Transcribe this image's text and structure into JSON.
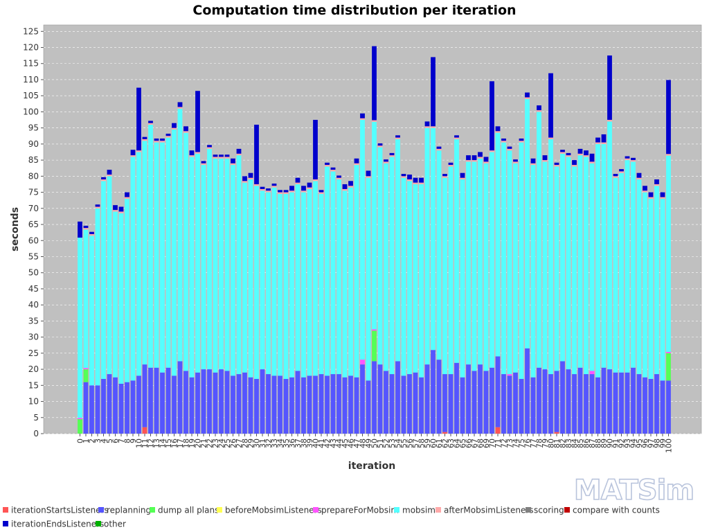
{
  "logo": {
    "text": "MATSim"
  },
  "chart_data": {
    "type": "bar",
    "stacked": true,
    "title": "Computation time distribution per iteration",
    "xlabel": "iteration",
    "ylabel": "seconds",
    "ylim": [
      0,
      127
    ],
    "yticks": [
      0,
      5,
      10,
      15,
      20,
      25,
      30,
      35,
      40,
      45,
      50,
      55,
      60,
      65,
      70,
      75,
      80,
      85,
      90,
      95,
      100,
      105,
      110,
      115,
      120,
      125
    ],
    "grid": true,
    "legend_position": "bottom",
    "background": "#c0c0c0",
    "categories": [
      "0",
      "1",
      "2",
      "3",
      "4",
      "5",
      "6",
      "7",
      "8",
      "9",
      "10",
      "11",
      "12",
      "13",
      "14",
      "15",
      "16",
      "17",
      "18",
      "19",
      "20",
      "21",
      "22",
      "23",
      "24",
      "25",
      "26",
      "27",
      "28",
      "29",
      "30",
      "31",
      "32",
      "33",
      "34",
      "35",
      "36",
      "37",
      "38",
      "39",
      "40",
      "41",
      "42",
      "43",
      "44",
      "45",
      "46",
      "47",
      "48",
      "49",
      "50",
      "51",
      "52",
      "53",
      "54",
      "55",
      "56",
      "57",
      "58",
      "59",
      "60",
      "61",
      "62",
      "63",
      "64",
      "65",
      "66",
      "67",
      "68",
      "69",
      "70",
      "71",
      "72",
      "73",
      "74",
      "75",
      "76",
      "77",
      "78",
      "79",
      "80",
      "81",
      "82",
      "83",
      "84",
      "85",
      "86",
      "87",
      "88",
      "89",
      "90",
      "91",
      "92",
      "93",
      "94",
      "95",
      "96",
      "97",
      "98",
      "99",
      "100"
    ],
    "series": [
      {
        "name": "iterationStartsListeners",
        "color": "#ff5555",
        "values": [
          0,
          0,
          0,
          0,
          0,
          0,
          0,
          0,
          0,
          0,
          0,
          2,
          0,
          0,
          0,
          0,
          0,
          0,
          0,
          0,
          0,
          0,
          0,
          0,
          0,
          0,
          0,
          0,
          0,
          0,
          0,
          0,
          0,
          0,
          0,
          0,
          0,
          0,
          0,
          0,
          0,
          0,
          0,
          0,
          0,
          0,
          0,
          0,
          0,
          0,
          0,
          0,
          0,
          0,
          0,
          0,
          0,
          0,
          0,
          0,
          0,
          0,
          0.5,
          0,
          0,
          0,
          0,
          0,
          0,
          0,
          0,
          2,
          0,
          0,
          0,
          0,
          0,
          0,
          0,
          0,
          0,
          0.5,
          0,
          0,
          0,
          0,
          0,
          0,
          0,
          0,
          0,
          0,
          0,
          0,
          0,
          0,
          0,
          0,
          0,
          0,
          0
        ]
      },
      {
        "name": "replanning",
        "color": "#5555ff",
        "values": [
          0,
          16,
          15,
          15,
          17,
          18.5,
          17.5,
          15.5,
          16,
          16.5,
          18,
          19.5,
          20.5,
          20.5,
          19,
          20.5,
          18,
          22.5,
          19.5,
          17.5,
          19,
          20,
          20,
          19,
          20,
          19.5,
          18,
          18.5,
          19,
          17.5,
          17,
          20,
          18.5,
          18,
          18,
          17,
          17.5,
          19.5,
          17.5,
          18,
          18,
          18.5,
          18,
          18.5,
          18.5,
          17.5,
          18,
          17.5,
          21.5,
          16.5,
          22.5,
          21.5,
          19.5,
          18.5,
          22.5,
          18,
          18.5,
          19,
          17.5,
          21.5,
          26,
          23,
          18,
          18.5,
          22,
          17.5,
          21.5,
          19.5,
          21.5,
          19.5,
          20.5,
          22,
          18.5,
          18,
          19,
          17,
          26.5,
          17.5,
          20.5,
          20,
          18.5,
          19,
          22.5,
          20,
          18.5,
          20.5,
          18.5,
          18.5,
          17.5,
          20.5,
          20,
          19,
          19,
          19,
          20.5,
          18.5,
          17.5,
          17,
          18.5,
          16.5,
          16.5
        ]
      },
      {
        "name": "dump all plans",
        "color": "#55ff55",
        "values": [
          4.5,
          4,
          0,
          0,
          0,
          0,
          0,
          0,
          0,
          0,
          0,
          0,
          0,
          0,
          0,
          0,
          0,
          0,
          0,
          0,
          0,
          0,
          0,
          0,
          0,
          0,
          0,
          0,
          0,
          0,
          0,
          0,
          0,
          0,
          0,
          0,
          0,
          0,
          0,
          0,
          0,
          0,
          0,
          0,
          0,
          0,
          0,
          0,
          0,
          0,
          9.5,
          0,
          0,
          0,
          0,
          0,
          0,
          0,
          0,
          0,
          0,
          0,
          0,
          0,
          0,
          0,
          0,
          0,
          0,
          0,
          0,
          0,
          0,
          0,
          0,
          0,
          0,
          0,
          0,
          0,
          0,
          0,
          0,
          0,
          0,
          0,
          0,
          0,
          0,
          0,
          0,
          0,
          0,
          0,
          0,
          0,
          0,
          0,
          0,
          0,
          8.5
        ]
      },
      {
        "name": "beforeMobsimListeners",
        "color": "#ffff55",
        "values": [
          0,
          0,
          0,
          0,
          0,
          0,
          0,
          0,
          0,
          0,
          0,
          0,
          0,
          0,
          0,
          0,
          0,
          0,
          0,
          0,
          0,
          0,
          0,
          0,
          0,
          0,
          0,
          0,
          0,
          0,
          0,
          0,
          0,
          0,
          0,
          0,
          0,
          0,
          0,
          0,
          0,
          0,
          0,
          0,
          0,
          0,
          0,
          0,
          0,
          0,
          0,
          0,
          0,
          0,
          0,
          0,
          0,
          0,
          0,
          0,
          0,
          0,
          0,
          0,
          0,
          0,
          0,
          0,
          0,
          0,
          0,
          0,
          0,
          0,
          0,
          0,
          0,
          0,
          0,
          0,
          0,
          0,
          0,
          0,
          0,
          0,
          0,
          0,
          0,
          0,
          0,
          0,
          0,
          0,
          0,
          0,
          0,
          0,
          0,
          0,
          0
        ]
      },
      {
        "name": "prepareForMobsim",
        "color": "#ff55ff",
        "values": [
          0.4,
          0.4,
          0,
          0,
          0,
          0,
          0,
          0,
          0,
          0,
          0,
          0,
          0,
          0,
          0,
          0,
          0,
          0,
          0,
          0,
          0,
          0,
          0,
          0,
          0,
          0,
          0,
          0,
          0,
          0,
          0,
          0,
          0,
          0,
          0,
          0,
          0,
          0,
          0,
          0,
          0,
          0,
          0,
          0,
          0,
          0,
          0,
          0,
          1.5,
          0,
          0.4,
          0,
          0,
          0,
          0,
          0,
          0,
          0,
          0,
          0,
          0,
          0,
          0,
          0,
          0,
          0,
          0,
          0,
          0,
          0,
          0,
          0,
          0,
          0.5,
          0,
          0,
          0,
          0,
          0,
          0,
          0,
          0,
          0,
          0,
          0,
          0,
          0,
          1,
          0,
          0,
          0,
          0,
          0,
          0,
          0,
          0,
          0,
          0,
          0,
          0,
          0.4
        ]
      },
      {
        "name": "mobsim",
        "color": "#55ffff",
        "values": [
          56,
          43,
          46.5,
          55,
          61.5,
          61.5,
          51.5,
          53,
          57,
          69.5,
          69.5,
          69.5,
          75.5,
          70,
          71.5,
          71.5,
          76.5,
          78.5,
          74,
          68.5,
          68,
          63.5,
          68.5,
          66.5,
          65.5,
          66,
          65.5,
          68,
          59,
          61.5,
          60,
          55.5,
          56.5,
          58.5,
          56.5,
          57.5,
          57.5,
          58,
          57.5,
          58,
          60.5,
          56,
          65,
          63,
          60.5,
          58,
          58.5,
          66,
          74.5,
          63,
          64.5,
          67.5,
          64.5,
          67.5,
          69,
          61.5,
          60,
          58.5,
          60,
          73.5,
          69,
          65,
          61,
          64.5,
          69.5,
          61.5,
          63,
          65,
          64,
          64.5,
          67,
          69.5,
          72,
          69.5,
          65,
          73.5,
          77.5,
          66,
          79.5,
          64.5,
          73,
          63.5,
          64.5,
          66,
          64.5,
          66,
          67.5,
          64.5,
          72.5,
          69.5,
          77,
          60.5,
          62,
          66,
          64,
          60.5,
          57.5,
          56,
          58.5,
          56.5,
          61
        ]
      },
      {
        "name": "afterMobsimListeners",
        "color": "#ffaaaa",
        "values": [
          0,
          0.5,
          0.5,
          0.5,
          0.5,
          0.5,
          0.5,
          0.5,
          0.5,
          0.5,
          0.5,
          0.5,
          0.5,
          0.5,
          0.5,
          0.5,
          0.5,
          0.5,
          0.5,
          0.5,
          0.5,
          0.5,
          0.5,
          0.5,
          0.5,
          0.5,
          0.5,
          0.5,
          0.5,
          0.5,
          0.5,
          0.5,
          0.5,
          0.5,
          0.5,
          0.5,
          0.5,
          0.5,
          0.5,
          0.5,
          0.5,
          0.5,
          0.5,
          0.5,
          0.5,
          0.5,
          0.5,
          0.5,
          0.5,
          0.5,
          0.5,
          0.5,
          0.5,
          0.5,
          0.5,
          0.5,
          0.5,
          0.5,
          0.5,
          0.5,
          0.5,
          0.5,
          0.5,
          0.5,
          0.5,
          0.5,
          0.5,
          0.5,
          0.5,
          0.5,
          0.5,
          0.5,
          0.5,
          0.5,
          0.5,
          0.5,
          0.5,
          0.5,
          0.5,
          0.5,
          0.5,
          0.5,
          0.5,
          0.5,
          0.5,
          0.5,
          0.5,
          0.5,
          0.5,
          0.5,
          0.5,
          0.5,
          0.5,
          0.5,
          0.5,
          0.5,
          0.5,
          0.5,
          0.5,
          0.5,
          0.5
        ]
      },
      {
        "name": "scoring",
        "color": "#808080",
        "values": [
          0,
          0,
          0,
          0,
          0,
          0,
          0,
          0,
          0,
          0,
          0,
          0,
          0,
          0,
          0,
          0,
          0,
          0,
          0,
          0,
          0,
          0,
          0,
          0,
          0,
          0,
          0,
          0,
          0,
          0,
          0,
          0,
          0,
          0,
          0,
          0,
          0,
          0,
          0,
          0,
          0,
          0,
          0,
          0,
          0,
          0,
          0,
          0,
          0,
          0,
          0,
          0,
          0,
          0,
          0,
          0,
          0,
          0,
          0,
          0,
          0,
          0,
          0,
          0,
          0,
          0,
          0,
          0,
          0,
          0,
          0,
          0,
          0,
          0,
          0,
          0,
          0,
          0,
          0,
          0,
          0,
          0,
          0,
          0,
          0,
          0,
          0,
          0,
          0,
          0,
          0,
          0,
          0,
          0,
          0,
          0,
          0,
          0,
          0,
          0,
          0
        ]
      },
      {
        "name": "compare with counts",
        "color": "#c00000",
        "values": [
          0,
          0,
          0,
          0,
          0,
          0,
          0,
          0,
          0,
          0,
          0,
          0,
          0,
          0,
          0,
          0,
          0,
          0,
          0,
          0,
          0,
          0,
          0,
          0,
          0,
          0,
          0,
          0,
          0,
          0,
          0,
          0,
          0,
          0,
          0,
          0,
          0,
          0,
          0,
          0,
          0,
          0,
          0,
          0,
          0,
          0,
          0,
          0,
          0,
          0,
          0,
          0,
          0,
          0,
          0,
          0,
          0,
          0,
          0,
          0,
          0,
          0,
          0,
          0,
          0,
          0,
          0,
          0,
          0,
          0,
          0,
          0,
          0,
          0,
          0,
          0,
          0,
          0,
          0,
          0,
          0,
          0,
          0,
          0,
          0,
          0,
          0,
          0,
          0,
          0,
          0,
          0,
          0,
          0,
          0,
          0,
          0,
          0,
          0,
          0,
          0
        ]
      },
      {
        "name": "iterationEndsListeners",
        "color": "#0000cc",
        "values": [
          5,
          0.7,
          0.7,
          0.7,
          0.7,
          1.5,
          1.5,
          1.5,
          1.5,
          1.7,
          19.5,
          0.7,
          0.7,
          0.7,
          0.7,
          0.7,
          1.5,
          1.5,
          1.5,
          1.5,
          19,
          0.7,
          0.7,
          0.7,
          0.7,
          0.7,
          1.5,
          1.5,
          1.5,
          1.5,
          18.5,
          0.7,
          0.7,
          0.7,
          0.7,
          0.7,
          1.5,
          1.5,
          1.5,
          1.5,
          18.5,
          0.7,
          0.7,
          0.7,
          0.7,
          1.5,
          1.5,
          1.5,
          1.5,
          1.7,
          23,
          0.7,
          0.7,
          0.7,
          0.7,
          0.7,
          1.5,
          1.5,
          1.5,
          1.5,
          21.5,
          0.7,
          0.7,
          0.7,
          0.7,
          1.5,
          1.5,
          1.5,
          1.5,
          1.5,
          21.5,
          1.5,
          0.7,
          0.7,
          0.7,
          0.7,
          1.5,
          1.5,
          1.5,
          1.5,
          20,
          0.7,
          0.7,
          0.7,
          1.5,
          1.5,
          1.5,
          2.5,
          1.5,
          2.5,
          20,
          0.7,
          0.7,
          0.7,
          0.7,
          1.5,
          1.5,
          1.5,
          1.5,
          1.5,
          23
        ]
      },
      {
        "name": "other",
        "color": "#00b000",
        "values": [
          0,
          0,
          0,
          0,
          0,
          0,
          0,
          0,
          0,
          0,
          0,
          0,
          0,
          0,
          0,
          0,
          0,
          0,
          0,
          0,
          0,
          0,
          0,
          0,
          0,
          0,
          0,
          0,
          0,
          0,
          0,
          0,
          0,
          0,
          0,
          0,
          0,
          0,
          0,
          0,
          0,
          0,
          0,
          0,
          0,
          0,
          0,
          0,
          0,
          0,
          0,
          0,
          0,
          0,
          0,
          0,
          0,
          0,
          0,
          0,
          0,
          0,
          0,
          0,
          0,
          0,
          0,
          0,
          0,
          0,
          0,
          0,
          0,
          0,
          0,
          0,
          0,
          0,
          0,
          0,
          0,
          0,
          0,
          0,
          0,
          0,
          0,
          0,
          0,
          0,
          0,
          0,
          0,
          0,
          0,
          0,
          0,
          0,
          0,
          0,
          0
        ]
      }
    ]
  }
}
